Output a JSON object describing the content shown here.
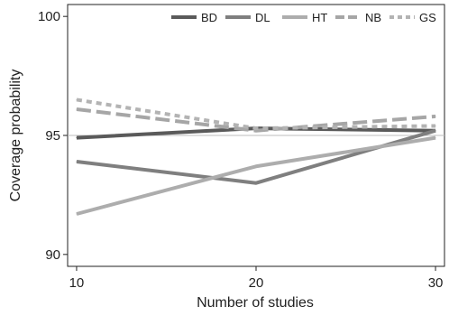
{
  "chart_data": {
    "type": "line",
    "title": "",
    "xlabel": "Number of studies",
    "ylabel": "Coverage probability",
    "x": [
      10,
      20,
      30
    ],
    "x_ticks": [
      "10",
      "20",
      "30"
    ],
    "y_ticks": [
      "90",
      "95",
      "100"
    ],
    "xlim": [
      9.5,
      30.5
    ],
    "ylim": [
      89.5,
      100.5
    ],
    "reference_line": 95,
    "legend_position": "top-right",
    "series": [
      {
        "name": "BD",
        "values": [
          94.9,
          95.3,
          95.2
        ],
        "color": "#5a5a5a",
        "dash": "solid"
      },
      {
        "name": "DL",
        "values": [
          93.9,
          93.0,
          95.2
        ],
        "color": "#7f7f7f",
        "dash": "solid"
      },
      {
        "name": "HT",
        "values": [
          91.7,
          93.7,
          94.9
        ],
        "color": "#adadad",
        "dash": "solid"
      },
      {
        "name": "NB",
        "values": [
          96.1,
          95.2,
          95.8
        ],
        "color": "#a6a6a6",
        "dash": "longdash"
      },
      {
        "name": "GS",
        "values": [
          96.5,
          95.3,
          95.4
        ],
        "color": "#b3b3b3",
        "dash": "shortdash"
      }
    ]
  }
}
